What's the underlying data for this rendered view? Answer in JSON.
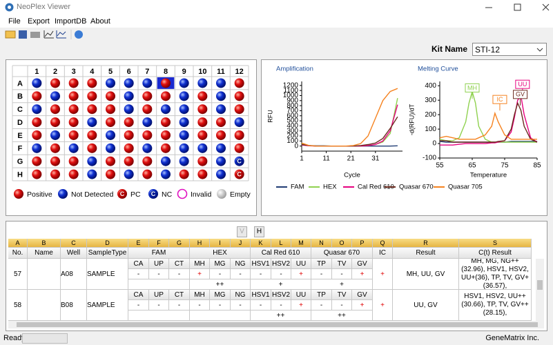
{
  "window": {
    "title": "NeoPlex Viewer"
  },
  "menu": [
    "File",
    "Export",
    "ImportDB",
    "About"
  ],
  "kit": {
    "label": "Kit Name",
    "value": "STI-12"
  },
  "plate": {
    "columns": [
      "1",
      "2",
      "3",
      "4",
      "5",
      "6",
      "7",
      "8",
      "9",
      "10",
      "11",
      "12"
    ],
    "rows": [
      "A",
      "B",
      "C",
      "D",
      "E",
      "F",
      "G",
      "H"
    ],
    "wells": [
      [
        "N",
        "P",
        "P",
        "P",
        "N",
        "N",
        "N",
        "P",
        "N",
        "N",
        "N",
        "P"
      ],
      [
        "P",
        "N",
        "P",
        "P",
        "P",
        "N",
        "P",
        "P",
        "N",
        "P",
        "N",
        "P"
      ],
      [
        "N",
        "P",
        "P",
        "P",
        "P",
        "N",
        "P",
        "N",
        "N",
        "P",
        "N",
        "P"
      ],
      [
        "P",
        "P",
        "P",
        "N",
        "P",
        "P",
        "N",
        "P",
        "N",
        "P",
        "P",
        "N"
      ],
      [
        "P",
        "N",
        "P",
        "P",
        "N",
        "P",
        "P",
        "P",
        "N",
        "P",
        "P",
        "P"
      ],
      [
        "N",
        "P",
        "N",
        "P",
        "N",
        "P",
        "N",
        "P",
        "N",
        "N",
        "N",
        "P"
      ],
      [
        "P",
        "P",
        "P",
        "N",
        "P",
        "P",
        "P",
        "N",
        "N",
        "P",
        "N",
        "NC"
      ],
      [
        "P",
        "P",
        "P",
        "N",
        "P",
        "N",
        "P",
        "N",
        "P",
        "P",
        "N",
        "PC"
      ]
    ],
    "control_mark": "C",
    "legend": [
      {
        "kind": "P",
        "label": "Positive"
      },
      {
        "kind": "N",
        "label": "Not Detected"
      },
      {
        "kind": "PC",
        "label": "PC"
      },
      {
        "kind": "NC",
        "label": "NC"
      },
      {
        "kind": "I",
        "label": "Invalid"
      },
      {
        "kind": "E",
        "label": "Empty"
      }
    ]
  },
  "channels": [
    {
      "name": "FAM",
      "color": "#1f3b73"
    },
    {
      "name": "HEX",
      "color": "#8fd14f"
    },
    {
      "name": "Cal Red 610",
      "color": "#e6007e"
    },
    {
      "name": "Quasar 670",
      "color": "#6b2a1e"
    },
    {
      "name": "Quasar 705",
      "color": "#f5821f"
    }
  ],
  "charts": [
    {
      "type": "line",
      "title": "Amplification",
      "x_label": "Cycle",
      "y_label": "RFU",
      "x": [
        1,
        4,
        7,
        10,
        13,
        16,
        19,
        22,
        25,
        28,
        31,
        34,
        37,
        40
      ],
      "xlim": [
        1,
        42
      ],
      "xticks": [
        1,
        11,
        21,
        31
      ],
      "ylim": [
        -100,
        1280
      ],
      "yticks": [
        0,
        100,
        200,
        300,
        400,
        500,
        600,
        700,
        800,
        900,
        1000,
        1100,
        1200
      ],
      "series": [
        {
          "values": [
            30,
            10,
            5,
            5,
            0,
            0,
            0,
            0,
            0,
            0,
            0,
            0,
            0,
            5
          ]
        },
        {
          "values": [
            40,
            10,
            0,
            0,
            0,
            0,
            0,
            0,
            0,
            10,
            30,
            80,
            250,
            950
          ]
        },
        {
          "values": [
            20,
            5,
            0,
            0,
            0,
            0,
            0,
            0,
            0,
            10,
            30,
            100,
            300,
            820
          ]
        },
        {
          "values": [
            30,
            10,
            0,
            0,
            0,
            0,
            0,
            0,
            10,
            30,
            60,
            150,
            350,
            580
          ]
        },
        {
          "values": [
            60,
            10,
            0,
            0,
            0,
            0,
            0,
            10,
            50,
            200,
            550,
            900,
            1080,
            1140
          ]
        }
      ]
    },
    {
      "type": "line",
      "title": "Melting Curve",
      "x_label": "Temperature",
      "y_label": "-d(RFU)/dT",
      "x": [
        55,
        57,
        59,
        61,
        63,
        64,
        65,
        66,
        67,
        69,
        71,
        72,
        73,
        75,
        77,
        78,
        79,
        80,
        81,
        83,
        85
      ],
      "xlim": [
        55,
        85
      ],
      "xticks": [
        55,
        65,
        75,
        85
      ],
      "ylim": [
        -100,
        430
      ],
      "yticks": [
        -100,
        0,
        100,
        200,
        300,
        400
      ],
      "series": [
        {
          "values": [
            15,
            10,
            10,
            10,
            10,
            10,
            10,
            10,
            10,
            10,
            10,
            10,
            10,
            10,
            15,
            15,
            15,
            15,
            15,
            15,
            15
          ]
        },
        {
          "values": [
            30,
            20,
            20,
            40,
            150,
            280,
            360,
            280,
            120,
            30,
            10,
            10,
            10,
            10,
            10,
            10,
            10,
            10,
            10,
            10,
            10
          ]
        },
        {
          "values": [
            -10,
            -10,
            -10,
            -5,
            0,
            0,
            0,
            0,
            0,
            0,
            5,
            5,
            10,
            20,
            80,
            180,
            300,
            330,
            200,
            40,
            10
          ]
        },
        {
          "values": [
            20,
            20,
            10,
            10,
            10,
            10,
            10,
            10,
            10,
            10,
            10,
            10,
            15,
            20,
            100,
            200,
            280,
            230,
            120,
            30,
            10
          ]
        },
        {
          "values": [
            40,
            50,
            40,
            30,
            30,
            30,
            30,
            30,
            40,
            60,
            120,
            210,
            150,
            60,
            30,
            30,
            30,
            30,
            30,
            30,
            30
          ]
        }
      ],
      "annotations": [
        {
          "text": "MH",
          "x": 65,
          "y": 385,
          "color": "#8fd14f"
        },
        {
          "text": "IC",
          "x": 73.5,
          "y": 305,
          "color": "#f5821f"
        },
        {
          "text": "UU",
          "x": 80.5,
          "y": 410,
          "color": "#e6007e"
        },
        {
          "text": "GV",
          "x": 79.8,
          "y": 340,
          "color": "#6b2a1e"
        }
      ]
    }
  ],
  "table": {
    "view_buttons": [
      "V",
      "H"
    ],
    "letters": [
      "A",
      "B",
      "C",
      "D",
      "E",
      "F",
      "G",
      "H",
      "I",
      "J",
      "K",
      "L",
      "M",
      "N",
      "O",
      "P",
      "Q",
      "R",
      "S"
    ],
    "columns": [
      "No.",
      "Name",
      "Well",
      "SampleType"
    ],
    "groups": [
      {
        "name": "FAM",
        "targets": [
          "CA",
          "UP",
          "CT"
        ]
      },
      {
        "name": "HEX",
        "targets": [
          "MH",
          "MG",
          "NG"
        ]
      },
      {
        "name": "Cal Red 610",
        "targets": [
          "HSV1",
          "HSV2",
          "UU"
        ]
      },
      {
        "name": "Quasar 670",
        "targets": [
          "TP",
          "TV",
          "GV"
        ]
      }
    ],
    "ic": "IC",
    "result": "Result",
    "ct_result": "C(t) Result",
    "rows": [
      {
        "no": 57,
        "well": "A08",
        "sample_type": "SAMPLE",
        "calls": [
          "-",
          "-",
          "-",
          "+",
          "-",
          "-",
          "-",
          "-",
          "+",
          "-",
          "-",
          "+"
        ],
        "group_calls": [
          null,
          "++",
          "+",
          "+"
        ],
        "ic": "+",
        "result": "MH, UU, GV",
        "ct_result": "MH, MG, NG++(32.96), HSV1, HSV2, UU+(36), TP, TV, GV+(36.57),"
      },
      {
        "no": 58,
        "well": "B08",
        "sample_type": "SAMPLE",
        "calls": [
          "-",
          "-",
          "-",
          "-",
          "-",
          "-",
          "-",
          "-",
          "+",
          "-",
          "-",
          "+"
        ],
        "group_calls": [
          null,
          null,
          "++",
          "++"
        ],
        "ic": "+",
        "result": "UU, GV",
        "ct_result": "HSV1, HSV2, UU++ (30.66), TP, TV, GV++ (28.15),"
      }
    ]
  },
  "status": {
    "left": "Ready",
    "right": "GeneMatrix Inc."
  }
}
